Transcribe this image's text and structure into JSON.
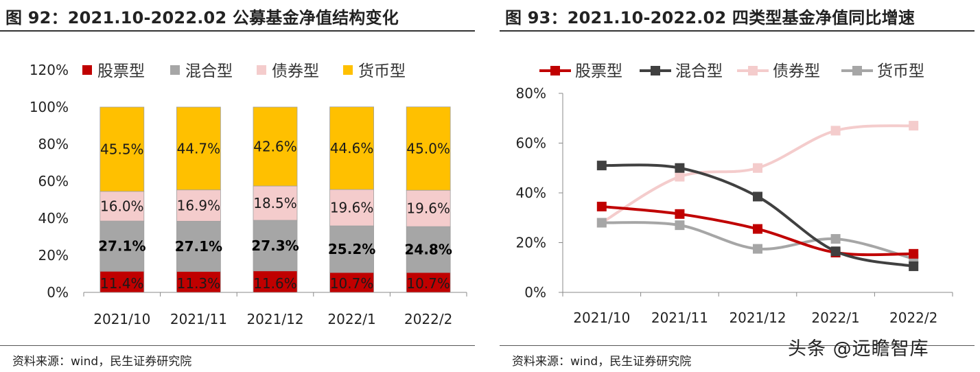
{
  "left_panel": {
    "title": "图 92：2021.10-2022.02 公募基金净值结构变化",
    "source": "资料来源：wind，民生证券研究院"
  },
  "right_panel": {
    "title": "图 93：2021.10-2022.02 四类型基金净值同比增速",
    "source": "资料来源：wind，民生证券研究院"
  },
  "watermark": "头条 @远瞻智库",
  "chart_data": [
    {
      "type": "bar",
      "stacked": true,
      "categories": [
        "2021/10",
        "2021/11",
        "2021/12",
        "2022/1",
        "2022/2"
      ],
      "series": [
        {
          "name": "股票型",
          "color": "#c00000",
          "values": [
            11.4,
            11.3,
            11.6,
            10.7,
            10.7
          ],
          "labels": [
            "11.4%",
            "11.3%",
            "11.6%",
            "10.7%",
            "10.7%"
          ]
        },
        {
          "name": "混合型",
          "color": "#a6a6a6",
          "values": [
            27.1,
            27.1,
            27.3,
            25.2,
            24.8
          ],
          "labels": [
            "27.1%",
            "27.1%",
            "27.3%",
            "25.2%",
            "24.8%"
          ]
        },
        {
          "name": "债券型",
          "color": "#f4cccc",
          "values": [
            16.0,
            16.9,
            18.5,
            19.6,
            19.6
          ],
          "labels": [
            "16.0%",
            "16.9%",
            "18.5%",
            "19.6%",
            "19.6%"
          ]
        },
        {
          "name": "货币型",
          "color": "#ffc000",
          "values": [
            45.5,
            44.7,
            42.6,
            44.6,
            45.0
          ],
          "labels": [
            "45.5%",
            "44.7%",
            "42.6%",
            "44.6%",
            "45.0%"
          ]
        }
      ],
      "ylim": [
        0,
        120
      ],
      "yticks": [
        "0%",
        "20%",
        "40%",
        "60%",
        "80%",
        "100%",
        "120%"
      ],
      "legend": "top",
      "grid": false
    },
    {
      "type": "line",
      "smooth": true,
      "categories": [
        "2021/10",
        "2021/11",
        "2021/12",
        "2022/1",
        "2022/2"
      ],
      "series": [
        {
          "name": "股票型",
          "color": "#c00000",
          "values": [
            34.5,
            31.5,
            25.5,
            16.0,
            15.5
          ]
        },
        {
          "name": "混合型",
          "color": "#404040",
          "values": [
            51.0,
            50.0,
            38.5,
            16.5,
            10.5
          ]
        },
        {
          "name": "债券型",
          "color": "#f4cccc",
          "values": [
            28.0,
            46.5,
            50.0,
            65.0,
            67.0
          ]
        },
        {
          "name": "货币型",
          "color": "#a6a6a6",
          "values": [
            28.0,
            27.0,
            17.5,
            21.5,
            13.5
          ]
        }
      ],
      "ylim": [
        0,
        80
      ],
      "yticks": [
        "0%",
        "20%",
        "40%",
        "60%",
        "80%"
      ],
      "legend": "top",
      "grid": false
    }
  ]
}
